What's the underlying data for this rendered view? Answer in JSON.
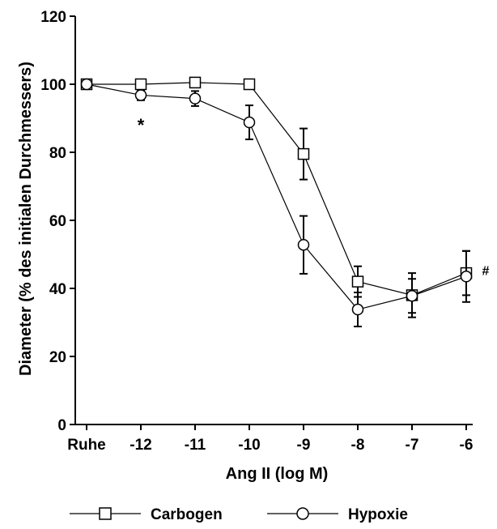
{
  "chart_data": {
    "type": "line",
    "xlabel": "Ang II (log M)",
    "ylabel": "Diameter (%  des initialen Durchmessers)",
    "categories": [
      "Ruhe",
      "-12",
      "-11",
      "-10",
      "-9",
      "-8",
      "-7",
      "-6"
    ],
    "ylim": [
      0,
      120
    ],
    "yticks": [
      0,
      20,
      40,
      60,
      80,
      100,
      120
    ],
    "grid": false,
    "legend_position": "bottom",
    "series": [
      {
        "name": "Carbogen",
        "marker": "square",
        "values": [
          100,
          100,
          100.5,
          100,
          79.5,
          42,
          38,
          44.5
        ],
        "errors": [
          0,
          0,
          0,
          0,
          7.5,
          4.5,
          6.5,
          6.5
        ]
      },
      {
        "name": "Hypoxie",
        "marker": "circle",
        "values": [
          100,
          96.8,
          95.8,
          88.8,
          52.8,
          33.8,
          37.8,
          43.5
        ],
        "errors": [
          0,
          1.5,
          2.2,
          5,
          8.5,
          5,
          5,
          7.5
        ]
      }
    ],
    "annotations": [
      {
        "text": "*",
        "category": "-12",
        "y": 89
      },
      {
        "text": "#",
        "category": "-6",
        "y": 43.5
      }
    ]
  }
}
